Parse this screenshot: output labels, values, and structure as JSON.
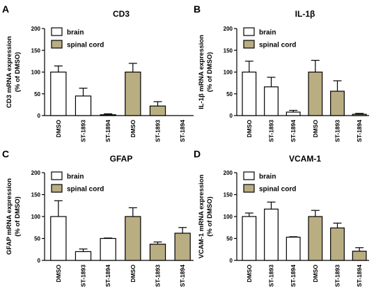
{
  "colors": {
    "brain": "#ffffff",
    "spinal_cord": "#b9ad82",
    "stroke": "#000000"
  },
  "chart_data": [
    {
      "type": "bar",
      "panel": "A",
      "title": "CD3",
      "ylabel_line1": "CD3 mRNA expression",
      "ylabel_line2": "(% of DMSO)",
      "ylim": [
        0,
        200
      ],
      "yticks": [
        "0",
        "50",
        "100",
        "150",
        "200"
      ],
      "categories": [
        "DMSO",
        "ST-1893",
        "ST-1894",
        "DMSO",
        "ST-1893",
        "ST-1894"
      ],
      "groups": [
        "brain",
        "brain",
        "brain",
        "spinal_cord",
        "spinal_cord",
        "spinal_cord"
      ],
      "values": [
        100,
        45,
        2,
        100,
        22,
        0
      ],
      "errors": [
        14,
        18,
        2,
        20,
        10,
        0
      ],
      "legend": [
        "brain",
        "spinal cord"
      ]
    },
    {
      "type": "bar",
      "panel": "B",
      "title": "IL-1β",
      "ylabel_line1": "IL-1β mRNA expression",
      "ylabel_line2": "(% of DMSO)",
      "ylim": [
        0,
        200
      ],
      "yticks": [
        "0",
        "50",
        "100",
        "150",
        "200"
      ],
      "categories": [
        "DMSO",
        "ST-1893",
        "ST-1894",
        "DMSO",
        "ST-1893",
        "ST-1894"
      ],
      "groups": [
        "brain",
        "brain",
        "brain",
        "spinal_cord",
        "spinal_cord",
        "spinal_cord"
      ],
      "values": [
        100,
        66,
        8,
        100,
        56,
        3
      ],
      "errors": [
        25,
        22,
        4,
        27,
        24,
        2
      ],
      "legend": [
        "brain",
        "spinal cord"
      ]
    },
    {
      "type": "bar",
      "panel": "C",
      "title": "GFAP",
      "ylabel_line1": "GFAP mRNA expression",
      "ylabel_line2": "(% of DMSO)",
      "ylim": [
        0,
        200
      ],
      "yticks": [
        "0",
        "50",
        "100",
        "150",
        "200"
      ],
      "categories": [
        "DMSO",
        "ST-1893",
        "ST-1894",
        "DMSO",
        "ST-1893",
        "ST-1894"
      ],
      "groups": [
        "brain",
        "brain",
        "brain",
        "spinal_cord",
        "spinal_cord",
        "spinal_cord"
      ],
      "values": [
        100,
        20,
        50,
        100,
        37,
        62
      ],
      "errors": [
        36,
        6,
        1,
        20,
        5,
        13
      ],
      "legend": [
        "brain",
        "spinal cord"
      ]
    },
    {
      "type": "bar",
      "panel": "D",
      "title": "VCAM-1",
      "ylabel_line1": "VCAM-1 mRNA expression",
      "ylabel_line2": "(% of DMSO)",
      "ylim": [
        0,
        200
      ],
      "yticks": [
        "0",
        "50",
        "100",
        "150",
        "200"
      ],
      "categories": [
        "DMSO",
        "ST-1893",
        "ST-1894",
        "DMSO",
        "ST-1893",
        "ST-1894"
      ],
      "groups": [
        "brain",
        "brain",
        "brain",
        "spinal_cord",
        "spinal_cord",
        "spinal_cord"
      ],
      "values": [
        100,
        117,
        53,
        100,
        74,
        21
      ],
      "errors": [
        8,
        16,
        1,
        14,
        11,
        8
      ],
      "legend": [
        "brain",
        "spinal cord"
      ]
    }
  ]
}
